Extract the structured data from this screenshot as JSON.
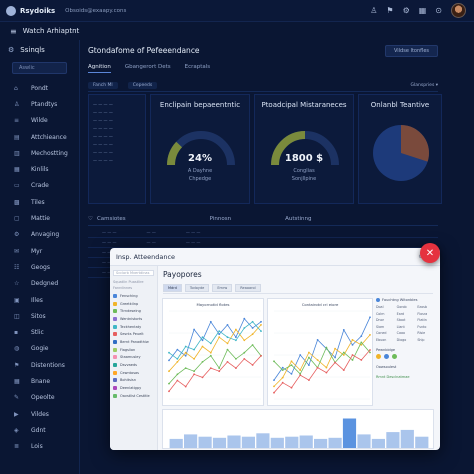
{
  "app": {
    "brand": "Rsydoiks",
    "tenant": "Obsoids@exaapy.cons"
  },
  "subbar": {
    "title": "Watch Arhiaptnt"
  },
  "colors": {
    "accent": "#4a86d9",
    "close": "#e5323f",
    "gauge_track": "#1c3263",
    "gauge_fill": "#7a8a3c"
  },
  "sidebar": {
    "header": "Ssinqls",
    "search": "Aswlic",
    "items": [
      {
        "label": "Pondt",
        "icon": "home-icon"
      },
      {
        "label": "Ptandtys",
        "icon": "user-icon"
      },
      {
        "label": "Wilde",
        "icon": "list-icon"
      },
      {
        "label": "Attchieance",
        "icon": "file-icon"
      },
      {
        "label": "Mechostting",
        "icon": "chart-icon"
      },
      {
        "label": "Kinlils",
        "icon": "grid-icon"
      },
      {
        "label": "Crade",
        "icon": "folder-icon"
      },
      {
        "label": "Tiles",
        "icon": "tiles-icon"
      },
      {
        "label": "Mattie",
        "icon": "doc-icon"
      },
      {
        "label": "Anvaging",
        "icon": "settings-icon"
      },
      {
        "label": "Myr",
        "icon": "mail-icon"
      },
      {
        "label": "Geogs",
        "icon": "group-icon"
      },
      {
        "label": "Dedgned",
        "icon": "star-icon"
      },
      {
        "label": "Illes",
        "icon": "image-icon"
      },
      {
        "label": "Sitos",
        "icon": "site-icon"
      },
      {
        "label": "Stlic",
        "icon": "lock-icon"
      },
      {
        "label": "Gogie",
        "icon": "globe-icon"
      },
      {
        "label": "Distentions",
        "icon": "flag-icon"
      },
      {
        "label": "Bnane",
        "icon": "box-icon"
      },
      {
        "label": "Opeolte",
        "icon": "edit-icon"
      },
      {
        "label": "Vildes",
        "icon": "video-icon"
      },
      {
        "label": "Gdnt",
        "icon": "gift-icon"
      },
      {
        "label": "Lois",
        "icon": "log-icon"
      }
    ]
  },
  "main": {
    "title": "Gtondafome of Pefeeendance",
    "view_button": "Vildse Itonfles",
    "tabs": [
      "Agnition",
      "Gbangerort Dets",
      "Ecraptals"
    ],
    "filters": [
      "Fanch Ml",
      "Cepeeds"
    ],
    "filter_dropdown": "Glanspries",
    "panels": [
      {
        "title": "Enclipain bepaeentntic",
        "value": "24%",
        "sub1": "A Dayhne",
        "sub2": "Chpedge",
        "gauge": 0.24
      },
      {
        "title": "Ptoadcipal Mistaraneces",
        "value": "1800 $",
        "sub1": "Conglias",
        "sub2": "Sonjllpine",
        "gauge": 0.5
      },
      {
        "title": "Onlanbl Teantive",
        "pie": [
          0.7,
          0.3
        ]
      }
    ],
    "filter2": {
      "a": "Camsiotes",
      "b": "Pinnosn",
      "c": "Autstinng"
    }
  },
  "modal": {
    "title": "Insp. Atteendance",
    "side_search": "Scclorb Mvertdinas",
    "side_label": "Squatlin Puastlire",
    "side_group": "Fanrdinnes",
    "side_items": [
      {
        "label": "Fensching",
        "color": "#4a86d9"
      },
      {
        "label": "Greetkilnp",
        "color": "#f0b429"
      },
      {
        "label": "Ttrndeseing",
        "color": "#6dbb59"
      },
      {
        "label": "Wentnistorts",
        "color": "#8b6fd1"
      },
      {
        "label": "Teckhentaty",
        "color": "#3fb6c6"
      },
      {
        "label": "Sesnts Peuelt",
        "color": "#e65f5f"
      },
      {
        "label": "Bernt Panadthiw",
        "color": "#2f6dc4"
      },
      {
        "label": "Fiagslion",
        "color": "#9ccc65"
      },
      {
        "label": "Staamusley",
        "color": "#f48fb1"
      },
      {
        "label": "Dsvvaeds",
        "color": "#26a69a"
      },
      {
        "label": "Cewntosas",
        "color": "#ffa726"
      },
      {
        "label": "Bohitsisn",
        "color": "#5c6bc0"
      },
      {
        "label": "Deenlatigpy",
        "color": "#ab47bc"
      },
      {
        "label": "Oavstlist Cestitle",
        "color": "#66bb6a"
      }
    ],
    "heading": "Payopores",
    "tabs": [
      "Mdrd",
      "Todoyde",
      "Emrw",
      "Reaoarol"
    ],
    "chart1_title": "Mayornotid flotes",
    "chart2_title": "Contairotd cri eiore",
    "right": {
      "heading": "Fouchtng Witonbles",
      "rows": [
        [
          "Doal",
          "Gorob",
          "Ezosb"
        ],
        [
          "Colm",
          "Eard",
          "Flosra"
        ],
        [
          "Dnor",
          "Stoot",
          "Ftatin"
        ],
        [
          "Siam",
          "Llant",
          "Fsnto"
        ],
        [
          "Coned",
          "Caao",
          "Rlsie"
        ],
        [
          "Ebuon",
          "Diogo",
          "Shlp"
        ]
      ],
      "sec1": "Pewnbidge",
      "sec2": "Oowsoulest",
      "sec3": "Rmnt Desclnatmae"
    },
    "bottom_bars": [
      8,
      12,
      10,
      9,
      11,
      10,
      13,
      9,
      10,
      11,
      8,
      9,
      26,
      12,
      8,
      14,
      16,
      10
    ]
  },
  "chart_data": [
    {
      "type": "line",
      "title": "Mayornotid flotes",
      "x": [
        1,
        2,
        3,
        4,
        5,
        6,
        7,
        8,
        9,
        10,
        11,
        12
      ],
      "series": [
        {
          "values": [
            35,
            42,
            38,
            55,
            48,
            60,
            52,
            58,
            50,
            62,
            56,
            60
          ]
        },
        {
          "values": [
            28,
            34,
            40,
            36,
            44,
            40,
            50,
            46,
            55,
            48,
            52,
            58
          ]
        },
        {
          "values": [
            20,
            26,
            30,
            28,
            34,
            38,
            30,
            42,
            36,
            40,
            45,
            38
          ]
        },
        {
          "values": [
            15,
            22,
            18,
            26,
            24,
            30,
            28,
            34,
            30,
            36,
            32,
            38
          ]
        },
        {
          "values": [
            40,
            36,
            44,
            42,
            50,
            46,
            54,
            50,
            48,
            56,
            60,
            54
          ]
        }
      ]
    },
    {
      "type": "line",
      "title": "Contairotd cri eiore",
      "x": [
        1,
        2,
        3,
        4,
        5,
        6,
        7,
        8,
        9,
        10,
        11,
        12
      ],
      "series": [
        {
          "values": [
            30,
            40,
            35,
            50,
            42,
            62,
            55,
            48,
            70,
            58,
            65,
            80
          ]
        },
        {
          "values": [
            25,
            32,
            45,
            38,
            52,
            46,
            40,
            55,
            50,
            62,
            58,
            66
          ]
        },
        {
          "values": [
            45,
            38,
            42,
            35,
            48,
            40,
            56,
            44,
            52,
            46,
            60,
            52
          ]
        },
        {
          "values": [
            20,
            28,
            24,
            34,
            30,
            40,
            36,
            44,
            38,
            50,
            46,
            54
          ]
        }
      ]
    },
    {
      "type": "bar",
      "values": [
        8,
        12,
        10,
        9,
        11,
        10,
        13,
        9,
        10,
        11,
        8,
        9,
        26,
        12,
        8,
        14,
        16,
        10
      ]
    }
  ]
}
